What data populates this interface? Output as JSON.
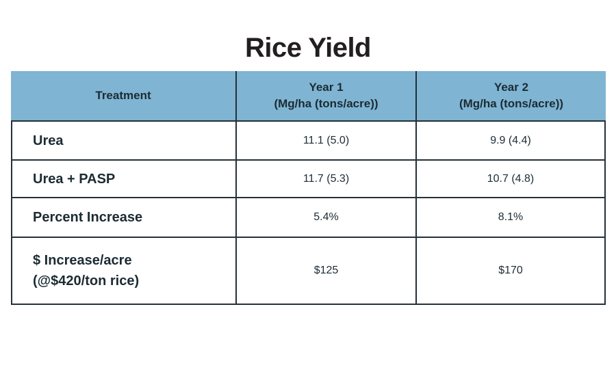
{
  "title": "Rice Yield",
  "colors": {
    "background": "#ffffff",
    "header_bg": "#7fb4d3",
    "border": "#233038",
    "title_text": "#231f20",
    "cell_text": "#1c2b33"
  },
  "display": {
    "header": {
      "col1": "Treatment",
      "col2_line1": "Year 1",
      "col2_line2": "(Mg/ha (tons/acre))",
      "col3_line1": "Year 2",
      "col3_line2": "(Mg/ha (tons/acre))"
    },
    "row4_label_line1": "$ Increase/acre",
    "row4_label_line2": "(@$420/ton rice)"
  },
  "chart_data": {
    "type": "table",
    "title": "Rice Yield",
    "columns": [
      "Treatment",
      "Year 1 (Mg/ha (tons/acre))",
      "Year 2 (Mg/ha (tons/acre))"
    ],
    "rows": [
      [
        "Urea",
        "11.1 (5.0)",
        "9.9 (4.4)"
      ],
      [
        "Urea + PASP",
        "11.7 (5.3)",
        "10.7 (4.8)"
      ],
      [
        "Percent Increase",
        "5.4%",
        "8.1%"
      ],
      [
        "$ Increase/acre (@$420/ton rice)",
        "$125",
        "$170"
      ]
    ],
    "layout": {
      "header_fill": "#7fb4d3",
      "grid": true,
      "label_column_align": "left",
      "value_columns_align": "center"
    }
  }
}
